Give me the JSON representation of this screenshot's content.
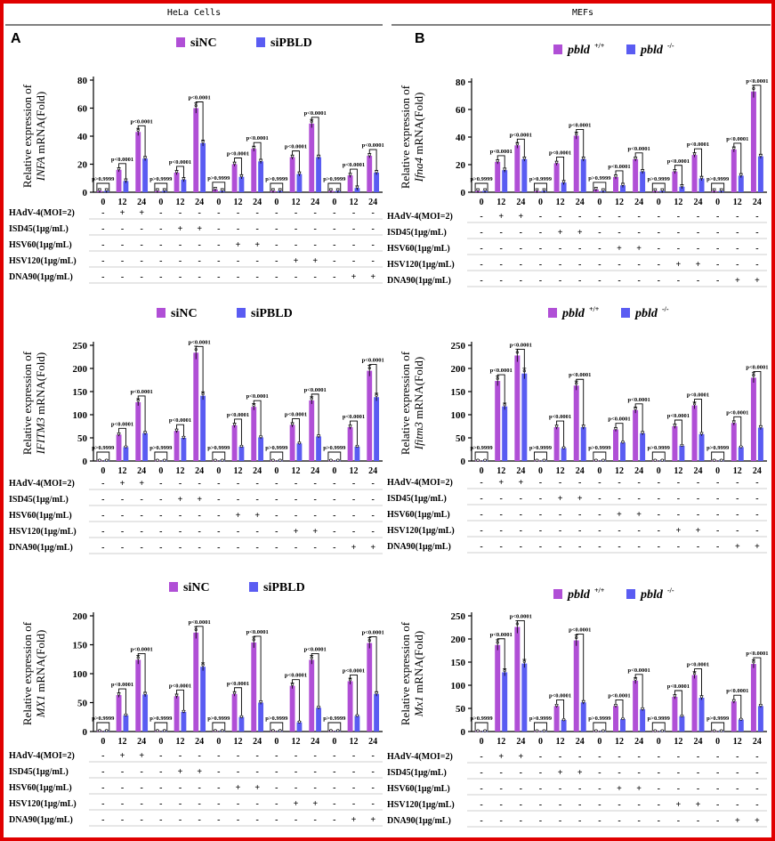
{
  "headers": {
    "left": "HeLa Cells",
    "right": "MEFs"
  },
  "panel_letters": {
    "left": "A",
    "right": "B"
  },
  "colors": {
    "control": "#b04fd6",
    "knockdown": "#5a5cf2",
    "border": "#e00000"
  },
  "legends": {
    "hela": {
      "control": "siNC",
      "knockdown": "siPBLD"
    },
    "mef": {
      "control": "pbld",
      "control_sup": "+/+",
      "knockdown": "pbld",
      "knockdown_sup": "-/-"
    }
  },
  "y_prefix": "Relative expression of",
  "y_suffix": " mRNA(Fold)",
  "timepoints": [
    "0",
    "12",
    "24",
    "0",
    "12",
    "24",
    "0",
    "12",
    "24",
    "0",
    "12",
    "24",
    "0",
    "12",
    "24"
  ],
  "treatments": [
    "HAdV-4(MOI=2)",
    "ISD45(1μg/mL)",
    "HSV60(1μg/mL)",
    "HSV120(1μg/mL)",
    "DNA90(1μg/mL)"
  ],
  "marks": {
    "plus": "+",
    "minus": "-"
  },
  "chart_data": [
    {
      "type": "bar",
      "id": "hela_infa",
      "gene": "INFA",
      "gene_style": "italic",
      "ylim": [
        0,
        80
      ],
      "yticks": [
        0,
        20,
        40,
        60,
        80
      ],
      "legend": "hela",
      "series": [
        {
          "name": "siNC",
          "values": [
            1,
            16,
            43,
            1,
            14,
            60,
            2,
            20,
            31,
            1,
            25,
            49,
            1,
            12,
            26
          ]
        },
        {
          "name": "siPBLD",
          "values": [
            1,
            8,
            24,
            1,
            9,
            35,
            1,
            11,
            22,
            1,
            13,
            25,
            1,
            3,
            14
          ]
        }
      ],
      "pvalues": [
        "p>0.9999",
        "p<0.0001",
        "p<0.0001",
        "p>0.9999",
        "p<0.0001",
        "p<0.0001",
        "p>0.9999",
        "p<0.0001",
        "p<0.0001",
        "p>0.9999",
        "p<0.0001",
        "p<0.0001",
        "p>0.9999",
        "p<0.0001",
        "p<0.0001"
      ]
    },
    {
      "type": "bar",
      "id": "mef_ifna4",
      "gene": "Ifna4",
      "gene_style": "italic",
      "ylim": [
        0,
        80
      ],
      "yticks": [
        0,
        20,
        40,
        60,
        80
      ],
      "legend": "mef",
      "series": [
        {
          "name": "pbld+/+",
          "values": [
            1,
            22,
            34,
            1,
            21,
            41,
            2,
            11,
            24,
            1,
            15,
            27,
            1,
            31,
            73
          ]
        },
        {
          "name": "pbld-/-",
          "values": [
            1,
            16,
            24,
            1,
            7,
            24,
            1,
            5,
            15,
            1,
            4,
            10,
            1,
            12,
            26
          ]
        }
      ],
      "pvalues": [
        "p>0.9999",
        "p<0.0001",
        "p<0.0001",
        "p>0.9999",
        "p<0.0001",
        "p<0.0001",
        "p>0.9999",
        "p<0.0001",
        "p<0.0001",
        "p>0.9999",
        "p<0.0001",
        "p<0.0001",
        "p>0.9999",
        "p<0.0001",
        "p<0.0001"
      ]
    },
    {
      "type": "bar",
      "id": "hela_ifitm3",
      "gene": "IFITM3",
      "gene_style": "italic",
      "ylim": [
        0,
        250
      ],
      "yticks": [
        0,
        50,
        100,
        150,
        200,
        250
      ],
      "legend": "hela",
      "series": [
        {
          "name": "siNC",
          "values": [
            1,
            57,
            127,
            1,
            65,
            234,
            1,
            77,
            117,
            1,
            78,
            131,
            1,
            73,
            195
          ]
        },
        {
          "name": "siPBLD",
          "values": [
            1,
            30,
            60,
            1,
            50,
            141,
            1,
            31,
            51,
            1,
            38,
            53,
            1,
            31,
            138
          ]
        }
      ],
      "pvalues": [
        "p>0.9999",
        "p<0.0001",
        "p<0.0001",
        "p>0.9999",
        "p<0.0001",
        "p<0.0001",
        "p>0.9999",
        "p<0.0001",
        "p<0.0001",
        "p>0.9999",
        "p<0.0001",
        "p<0.0001",
        "p>0.9999",
        "p<0.0001",
        "p<0.0001"
      ]
    },
    {
      "type": "bar",
      "id": "mef_ifitm3",
      "gene": "Ifitm3",
      "gene_style": "italic",
      "ylim": [
        0,
        250
      ],
      "yticks": [
        0,
        50,
        100,
        150,
        200,
        250
      ],
      "legend": "mef",
      "series": [
        {
          "name": "pbld+/+",
          "values": [
            1,
            173,
            228,
            1,
            73,
            163,
            1,
            68,
            110,
            1,
            75,
            120,
            1,
            82,
            180
          ]
        },
        {
          "name": "pbld-/-",
          "values": [
            1,
            118,
            189,
            1,
            28,
            73,
            1,
            40,
            60,
            1,
            33,
            58,
            1,
            30,
            72
          ]
        }
      ],
      "pvalues": [
        "p>0.9999",
        "p<0.0001",
        "p<0.0001",
        "p>0.9999",
        "p<0.0001",
        "p<0.0001",
        "p>0.9999",
        "p<0.0001",
        "p<0.0001",
        "p>0.9999",
        "p<0.0001",
        "p<0.0001",
        "p>0.9999",
        "p<0.0001",
        "p<0.0001"
      ]
    },
    {
      "type": "bar",
      "id": "hela_mx1",
      "gene": "MX1",
      "gene_style": "italic",
      "ylim": [
        0,
        200
      ],
      "yticks": [
        0,
        50,
        100,
        150,
        200
      ],
      "legend": "hela",
      "series": [
        {
          "name": "siNC",
          "values": [
            1,
            63,
            124,
            1,
            61,
            171,
            1,
            65,
            154,
            1,
            79,
            124,
            1,
            87,
            153
          ]
        },
        {
          "name": "siPBLD",
          "values": [
            1,
            28,
            64,
            1,
            34,
            112,
            1,
            25,
            50,
            1,
            16,
            41,
            1,
            27,
            65
          ]
        }
      ],
      "pvalues": [
        "p>0.9999",
        "p<0.0001",
        "p<0.0001",
        "p>0.9999",
        "p<0.0001",
        "p<0.0001",
        "p>0.9999",
        "p<0.0001",
        "p<0.0001",
        "p>0.9999",
        "p<0.0001",
        "p<0.0001",
        "p>0.9999",
        "p<0.0001",
        "p<0.0001"
      ]
    },
    {
      "type": "bar",
      "id": "mef_mx1",
      "gene": "Mx1",
      "gene_style": "italic",
      "ylim": [
        0,
        250
      ],
      "yticks": [
        0,
        50,
        100,
        150,
        200,
        250
      ],
      "legend": "mef",
      "series": [
        {
          "name": "pbld+/+",
          "values": [
            1,
            187,
            226,
            1,
            55,
            197,
            1,
            55,
            110,
            1,
            75,
            122,
            1,
            65,
            146
          ]
        },
        {
          "name": "pbld-/-",
          "values": [
            1,
            128,
            147,
            1,
            25,
            63,
            1,
            27,
            48,
            1,
            33,
            73,
            1,
            26,
            55
          ]
        }
      ],
      "pvalues": [
        "p>0.9999",
        "p<0.0001",
        "p<0.0001",
        "p>0.9999",
        "p<0.0001",
        "p<0.0001",
        "p>0.9999",
        "p<0.0001",
        "p<0.0001",
        "p>0.9999",
        "p<0.0001",
        "p<0.0001",
        "p>0.9999",
        "p<0.0001",
        "p<0.0001"
      ]
    }
  ]
}
